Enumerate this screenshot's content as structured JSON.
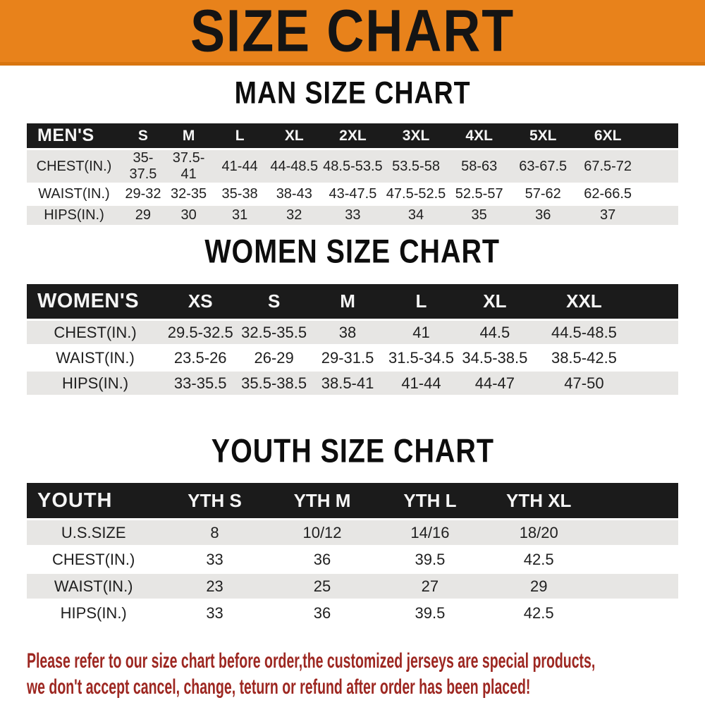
{
  "banner": {
    "title": "SIZE CHART",
    "background_color": "#e8821b",
    "title_color": "#141414"
  },
  "sections": {
    "men": {
      "title": "MAN SIZE CHART",
      "table": {
        "header": [
          "MEN'S",
          "S",
          "M",
          "L",
          "XL",
          "2XL",
          "3XL",
          "4XL",
          "5XL",
          "6XL"
        ],
        "rows": [
          [
            "CHEST(IN.)",
            "35-37.5",
            "37.5-41",
            "41-44",
            "44-48.5",
            "48.5-53.5",
            "53.5-58",
            "58-63",
            "63-67.5",
            "67.5-72"
          ],
          [
            "WAIST(IN.)",
            "29-32",
            "32-35",
            "35-38",
            "38-43",
            "43-47.5",
            "47.5-52.5",
            "52.5-57",
            "57-62",
            "62-66.5"
          ],
          [
            "HIPS(IN.)",
            "29",
            "30",
            "31",
            "32",
            "33",
            "34",
            "35",
            "36",
            "37"
          ]
        ]
      }
    },
    "women": {
      "title": "WOMEN SIZE CHART",
      "table": {
        "header": [
          "WOMEN'S",
          "XS",
          "S",
          "M",
          "L",
          "XL",
          "XXL"
        ],
        "rows": [
          [
            "CHEST(IN.)",
            "29.5-32.5",
            "32.5-35.5",
            "38",
            "41",
            "44.5",
            "44.5-48.5"
          ],
          [
            "WAIST(IN.)",
            "23.5-26",
            "26-29",
            "29-31.5",
            "31.5-34.5",
            "34.5-38.5",
            "38.5-42.5"
          ],
          [
            "HIPS(IN.)",
            "33-35.5",
            "35.5-38.5",
            "38.5-41",
            "41-44",
            "44-47",
            "47-50"
          ]
        ]
      }
    },
    "youth": {
      "title": "YOUTH SIZE CHART",
      "table": {
        "header": [
          "YOUTH",
          "YTH S",
          "YTH M",
          "YTH L",
          "YTH XL"
        ],
        "rows": [
          [
            "U.S.SIZE",
            "8",
            "10/12",
            "14/16",
            "18/20"
          ],
          [
            "CHEST(IN.)",
            "33",
            "36",
            "39.5",
            "42.5"
          ],
          [
            "WAIST(IN.)",
            "23",
            "25",
            "27",
            "29"
          ],
          [
            "HIPS(IN.)",
            "33",
            "36",
            "39.5",
            "42.5"
          ]
        ]
      }
    }
  },
  "footer": {
    "line1": "Please refer to our size chart before order,the customized jerseys are special products,",
    "line2": "we don't accept cancel, change, teturn or refund after order has been placed!",
    "text_color": "#9d2721"
  },
  "colors": {
    "header_bar": "#1b1b1b",
    "header_text": "#f5f5f5",
    "row_alternate": "#e7e6e4",
    "row_plain": "#ffffff"
  }
}
